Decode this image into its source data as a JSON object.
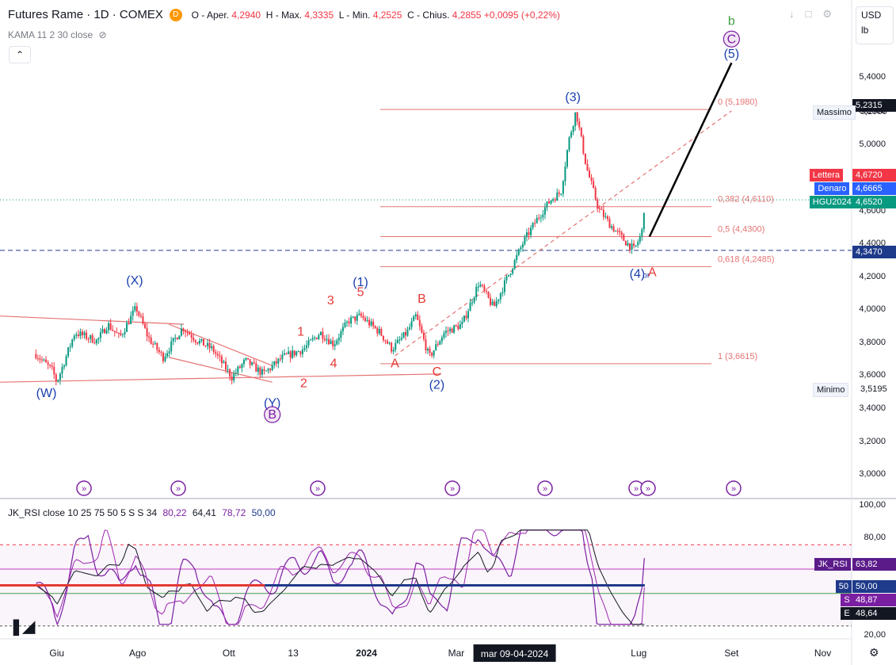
{
  "header": {
    "title": "Futures Rame · 1D · COMEX",
    "badge": "D",
    "ohlc": {
      "o_label": "O - Aper.",
      "o": "4,2940",
      "h_label": "H - Max.",
      "h": "4,3335",
      "l_label": "L - Min.",
      "l": "4,2525",
      "c_label": "C - Chius.",
      "c": "4,2855",
      "chg": "+0,0095 (+0,22%)"
    },
    "indicator": "KAMA 11 2 30 close"
  },
  "scale": {
    "currency": "USD",
    "unit": "lb"
  },
  "colors": {
    "up": "#089981",
    "down": "#f23645",
    "wave_blue": "#1a3fb0",
    "wave_red": "#e53935",
    "fib": "#e57373",
    "purple": "#7b1fa2",
    "green": "#43a047"
  },
  "chart_data": [
    {
      "type": "line",
      "title": "Futures Rame · 1D · COMEX",
      "x_ticks": [
        "Giu",
        "Ago",
        "Ott",
        "13",
        "2024",
        "Mar",
        "Lug",
        "Set",
        "Nov"
      ],
      "cursor_date": "mar 09-04-2024",
      "y_ticks": [
        "5,4000",
        "5,2000",
        "5,0000",
        "4,8000",
        "4,6000",
        "4,4000",
        "4,2000",
        "4,0000",
        "3,8000",
        "3,6000",
        "3,4000",
        "3,2000",
        "3,0000"
      ],
      "ylim": [
        2.86,
        5.8
      ],
      "price_path": [
        [
          "2023-05-25",
          3.72
        ],
        [
          "2023-06-05",
          3.62
        ],
        [
          "2023-06-08",
          3.55
        ],
        [
          "2023-06-20",
          3.85
        ],
        [
          "2023-07-05",
          3.8
        ],
        [
          "2023-07-12",
          3.9
        ],
        [
          "2023-07-20",
          3.82
        ],
        [
          "2023-07-31",
          4.0
        ],
        [
          "2023-08-08",
          3.82
        ],
        [
          "2023-08-18",
          3.7
        ],
        [
          "2023-08-31",
          3.88
        ],
        [
          "2023-09-10",
          3.8
        ],
        [
          "2023-09-20",
          3.75
        ],
        [
          "2023-10-03",
          3.58
        ],
        [
          "2023-10-12",
          3.68
        ],
        [
          "2023-10-24",
          3.6
        ],
        [
          "2023-11-06",
          3.7
        ],
        [
          "2023-11-20",
          3.75
        ],
        [
          "2023-12-01",
          3.85
        ],
        [
          "2023-12-10",
          3.78
        ],
        [
          "2023-12-20",
          3.92
        ],
        [
          "2023-12-28",
          3.95
        ],
        [
          "2024-01-10",
          3.85
        ],
        [
          "2024-01-18",
          3.75
        ],
        [
          "2024-01-28",
          3.85
        ],
        [
          "2024-02-03",
          3.95
        ],
        [
          "2024-02-12",
          3.7
        ],
        [
          "2024-02-22",
          3.85
        ],
        [
          "2024-03-05",
          3.9
        ],
        [
          "2024-03-16",
          4.15
        ],
        [
          "2024-03-26",
          4.0
        ],
        [
          "2024-04-05",
          4.2
        ],
        [
          "2024-04-15",
          4.4
        ],
        [
          "2024-04-25",
          4.55
        ],
        [
          "2024-05-03",
          4.65
        ],
        [
          "2024-05-10",
          4.7
        ],
        [
          "2024-05-15",
          5.0
        ],
        [
          "2024-05-20",
          5.19
        ],
        [
          "2024-05-27",
          4.85
        ],
        [
          "2024-06-04",
          4.6
        ],
        [
          "2024-06-12",
          4.5
        ],
        [
          "2024-06-22",
          4.4
        ],
        [
          "2024-06-28",
          4.35
        ],
        [
          "2024-07-03",
          4.45
        ],
        [
          "2024-07-05",
          4.65
        ]
      ],
      "projection": {
        "from": [
          "2024-07-05",
          4.43
        ],
        "to": [
          "2024-09-01",
          5.48
        ]
      },
      "fib_levels": [
        {
          "label": "0 (5,1980)",
          "value": 5.198
        },
        {
          "label": "0,382 (4,6110)",
          "value": 4.611
        },
        {
          "label": "0,5 (4,4300)",
          "value": 4.43
        },
        {
          "label": "0,618 (4,2485)",
          "value": 4.2485
        },
        {
          "label": "1 (3,6615)",
          "value": 3.6615
        }
      ],
      "wave_labels": [
        {
          "text": "(W)",
          "date": "2023-06-01",
          "y": 3.46,
          "color": "blue"
        },
        {
          "text": "(X)",
          "date": "2023-07-30",
          "y": 4.14,
          "color": "blue"
        },
        {
          "text": "(Y)",
          "date": "2023-10-30",
          "y": 3.4,
          "color": "blue"
        },
        {
          "text": "B",
          "date": "2023-10-30",
          "y": 3.33,
          "color": "purple",
          "circled": true
        },
        {
          "text": "1",
          "date": "2023-11-18",
          "y": 3.83,
          "color": "red"
        },
        {
          "text": "2",
          "date": "2023-11-20",
          "y": 3.52,
          "color": "red"
        },
        {
          "text": "3",
          "date": "2023-12-08",
          "y": 4.02,
          "color": "red"
        },
        {
          "text": "4",
          "date": "2023-12-10",
          "y": 3.64,
          "color": "red"
        },
        {
          "text": "5",
          "date": "2023-12-28",
          "y": 4.07,
          "color": "red"
        },
        {
          "text": "(1)",
          "date": "2023-12-28",
          "y": 4.13,
          "color": "blue"
        },
        {
          "text": "A",
          "date": "2024-01-20",
          "y": 3.64,
          "color": "red"
        },
        {
          "text": "B",
          "date": "2024-02-07",
          "y": 4.03,
          "color": "red"
        },
        {
          "text": "C",
          "date": "2024-02-17",
          "y": 3.59,
          "color": "red"
        },
        {
          "text": "(2)",
          "date": "2024-02-17",
          "y": 3.51,
          "color": "blue"
        },
        {
          "text": "(3)",
          "date": "2024-05-18",
          "y": 5.25,
          "color": "blue"
        },
        {
          "text": "(4)",
          "date": "2024-06-30",
          "y": 4.18,
          "color": "blue"
        },
        {
          "text": "or",
          "date": "2024-07-06",
          "y": 4.18,
          "color": "blue",
          "small": true
        },
        {
          "text": "A",
          "date": "2024-07-10",
          "y": 4.19,
          "color": "red"
        },
        {
          "text": "b",
          "date": "2024-09-01",
          "y": 5.71,
          "color": "green"
        },
        {
          "text": "C",
          "date": "2024-09-01",
          "y": 5.6,
          "color": "purple",
          "circled": true
        },
        {
          "text": "(5)",
          "date": "2024-09-01",
          "y": 5.51,
          "color": "blue"
        }
      ],
      "trendlines": [
        {
          "from": [
            "2023-05-01",
            3.55
          ],
          "to": [
            "2024-02-20",
            3.6
          ],
          "color": "red"
        },
        {
          "from": [
            "2023-05-01",
            3.95
          ],
          "to": [
            "2023-09-01",
            3.9
          ],
          "color": "red"
        },
        {
          "from": [
            "2023-08-22",
            3.7
          ],
          "to": [
            "2023-10-30",
            3.55
          ],
          "color": "red"
        },
        {
          "from": [
            "2023-08-22",
            3.9
          ],
          "to": [
            "2023-10-30",
            3.65
          ],
          "color": "red"
        }
      ],
      "channel_dashed": {
        "from": [
          "2024-01-20",
          3.71
        ],
        "to": [
          "2024-09-01",
          5.19
        ]
      },
      "horizontal_dashed": {
        "value": 4.347
      },
      "price_tags": [
        {
          "label": "",
          "value": "5,2315",
          "color": "#131722"
        },
        {
          "label": "Lettera",
          "value": "4,6720",
          "color": "#f23645"
        },
        {
          "label": "Denaro",
          "value": "4,6665",
          "color": "#2962ff"
        },
        {
          "label": "HGU2024",
          "value": "4,6520",
          "color": "#089981"
        },
        {
          "label": "",
          "value": "4,3470",
          "color": "#1e3a8a"
        }
      ],
      "plain_tags": [
        {
          "label": "Massimo",
          "value": "5,1980"
        },
        {
          "label": "Minimo",
          "value": "3,5195"
        }
      ]
    },
    {
      "type": "line",
      "title": "JK_RSI close 10 25 75 50 5 S S 34",
      "legend_values": [
        "80,22",
        "64,41",
        "78,72",
        "50,00"
      ],
      "y_ticks": [
        "100,00",
        "80,00",
        "20,00"
      ],
      "ylim": [
        15,
        100
      ],
      "levels": [
        75,
        60,
        50,
        45,
        25
      ],
      "rsi_end": 63.82,
      "tags": [
        {
          "label": "JK_RSI",
          "value": "63,82",
          "color": "#5b1c8a"
        },
        {
          "label": "50",
          "value": "50,00",
          "color": "#1e3a8a"
        },
        {
          "label": "S",
          "value": "48,87",
          "color": "#7b1fa2"
        },
        {
          "label": "E",
          "value": "48,64",
          "color": "#131722"
        }
      ]
    }
  ]
}
